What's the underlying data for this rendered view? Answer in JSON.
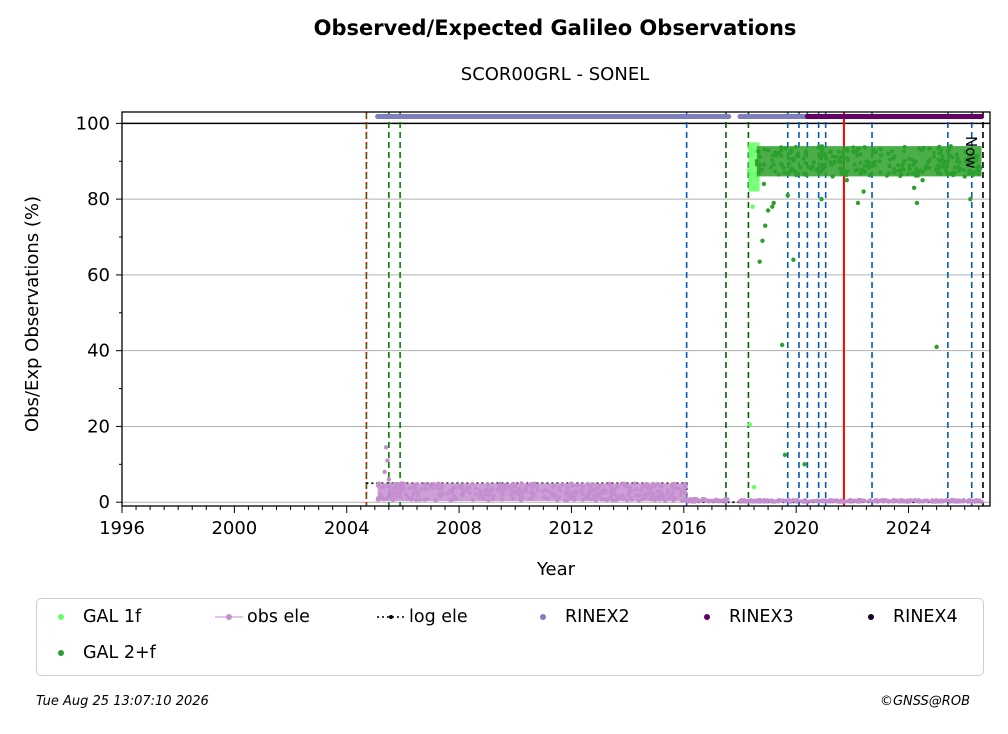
{
  "chart_data": {
    "type": "scatter",
    "title": "Observed/Expected Galileo Observations",
    "subtitle": "SCOR00GRL - SONEL",
    "xlabel": "Year",
    "ylabel": "Obs/Exp Observations (%)",
    "xlim": [
      1996,
      2026.9
    ],
    "ylim": [
      -1,
      103
    ],
    "xticks": [
      "1996",
      "2000",
      "2004",
      "2008",
      "2012",
      "2016",
      "2020",
      "2024"
    ],
    "yticks": [
      "0",
      "20",
      "40",
      "60",
      "80",
      "100"
    ],
    "grid": "horizontal",
    "now_label": "Now",
    "legend_position": "below",
    "legend": [
      {
        "name": "GAL 1f",
        "color": "#66ff66",
        "style": "dot"
      },
      {
        "name": "obs ele",
        "color": "#c48ed0",
        "style": "line-dot"
      },
      {
        "name": "log ele",
        "color": "#000000",
        "style": "dotted-line"
      },
      {
        "name": "RINEX2",
        "color": "#7f7fbf",
        "style": "dot"
      },
      {
        "name": "RINEX3",
        "color": "#660066",
        "style": "dot"
      },
      {
        "name": "RINEX4",
        "color": "#1a0022",
        "style": "dot"
      },
      {
        "name": "GAL 2+f",
        "color": "#2ca02c",
        "style": "dot"
      }
    ],
    "vertical_lines": [
      {
        "x": 2004.7,
        "color": "#008000",
        "style": "dashed"
      },
      {
        "x": 2004.7,
        "color": "#ff0000",
        "style": "dotted"
      },
      {
        "x": 2005.5,
        "color": "#008000",
        "style": "dashed"
      },
      {
        "x": 2005.9,
        "color": "#008000",
        "style": "dashed"
      },
      {
        "x": 2016.1,
        "color": "#005bbb",
        "style": "dashed"
      },
      {
        "x": 2017.5,
        "color": "#006400",
        "style": "dashed"
      },
      {
        "x": 2018.3,
        "color": "#006400",
        "style": "dashed"
      },
      {
        "x": 2019.7,
        "color": "#005bbb",
        "style": "dashed"
      },
      {
        "x": 2020.1,
        "color": "#005bbb",
        "style": "dashed"
      },
      {
        "x": 2020.4,
        "color": "#005bbb",
        "style": "dashed"
      },
      {
        "x": 2020.8,
        "color": "#005bbb",
        "style": "dashed"
      },
      {
        "x": 2021.05,
        "color": "#005bbb",
        "style": "dashed"
      },
      {
        "x": 2021.7,
        "color": "#ff0000",
        "style": "solid"
      },
      {
        "x": 2022.7,
        "color": "#005bbb",
        "style": "dashed"
      },
      {
        "x": 2025.4,
        "color": "#005bbb",
        "style": "dashed"
      },
      {
        "x": 2026.25,
        "color": "#005bbb",
        "style": "dashed"
      },
      {
        "x": 2026.65,
        "color": "#000000",
        "style": "dashed"
      }
    ],
    "series": [
      {
        "name": "RINEX2",
        "type": "band",
        "x_start": 2005.1,
        "x_end": 2017.6,
        "y": 101.8
      },
      {
        "name": "RINEX2",
        "type": "band",
        "x_start": 2018.0,
        "x_end": 2020.4,
        "y": 101.8
      },
      {
        "name": "RINEX3",
        "type": "band",
        "x_start": 2020.4,
        "x_end": 2026.6,
        "y": 101.8
      },
      {
        "name": "log ele",
        "type": "step",
        "x": [
          2004.7,
          2005.1,
          2005.1,
          2016.1,
          2016.1,
          2017.6,
          2018.0,
          2026.65
        ],
        "y": [
          5,
          5,
          5,
          5,
          0,
          0,
          0,
          0
        ]
      },
      {
        "name": "obs ele",
        "type": "band",
        "x_start": 2005.1,
        "x_end": 2016.1,
        "y_min": 0.3,
        "y_max": 5
      },
      {
        "name": "obs ele",
        "type": "points",
        "x": [
          2005.2,
          2005.3,
          2005.35,
          2005.4,
          2005.45,
          2005.5,
          2005.55,
          2005.6,
          2005.65
        ],
        "y": [
          2,
          4,
          8,
          14.5,
          11,
          6,
          3,
          1,
          0.5
        ]
      },
      {
        "name": "obs ele",
        "type": "band",
        "x_start": 2016.1,
        "x_end": 2017.6,
        "y_min": 0.1,
        "y_max": 0.9
      },
      {
        "name": "obs ele",
        "type": "band",
        "x_start": 2018.0,
        "x_end": 2026.6,
        "y_min": 0.1,
        "y_max": 0.6
      },
      {
        "name": "GAL 1f",
        "type": "band",
        "x_start": 2018.3,
        "x_end": 2018.7,
        "y_min": 82,
        "y_max": 95
      },
      {
        "name": "GAL 1f",
        "type": "points",
        "x": [
          2018.35,
          2018.5,
          2018.45
        ],
        "y": [
          20.5,
          4,
          78
        ]
      },
      {
        "name": "GAL 2+f",
        "type": "band",
        "x_start": 2018.6,
        "x_end": 2026.6,
        "y_min": 86,
        "y_max": 94
      },
      {
        "name": "GAL 2+f",
        "type": "points",
        "x": [
          2018.7,
          2018.8,
          2018.9,
          2019.0,
          2019.2,
          2019.5,
          2019.6,
          2019.7,
          2019.9,
          2020.3,
          2020.9,
          2021.3,
          2021.8,
          2022.2,
          2022.4,
          2023.0,
          2024.2,
          2024.3,
          2024.5,
          2025.0,
          2025.6,
          2026.0,
          2026.2,
          2026.3,
          2018.85,
          2019.15
        ],
        "y": [
          63.5,
          69,
          73,
          77,
          79,
          41.5,
          12.5,
          81,
          64,
          10,
          80,
          86,
          85,
          79,
          82,
          87,
          83,
          79,
          85,
          41,
          87,
          86,
          80,
          87,
          84,
          78
        ]
      }
    ]
  },
  "footer": {
    "timestamp": "Tue Aug 25 13:07:10 2026",
    "credit": "©GNSS@ROB"
  }
}
